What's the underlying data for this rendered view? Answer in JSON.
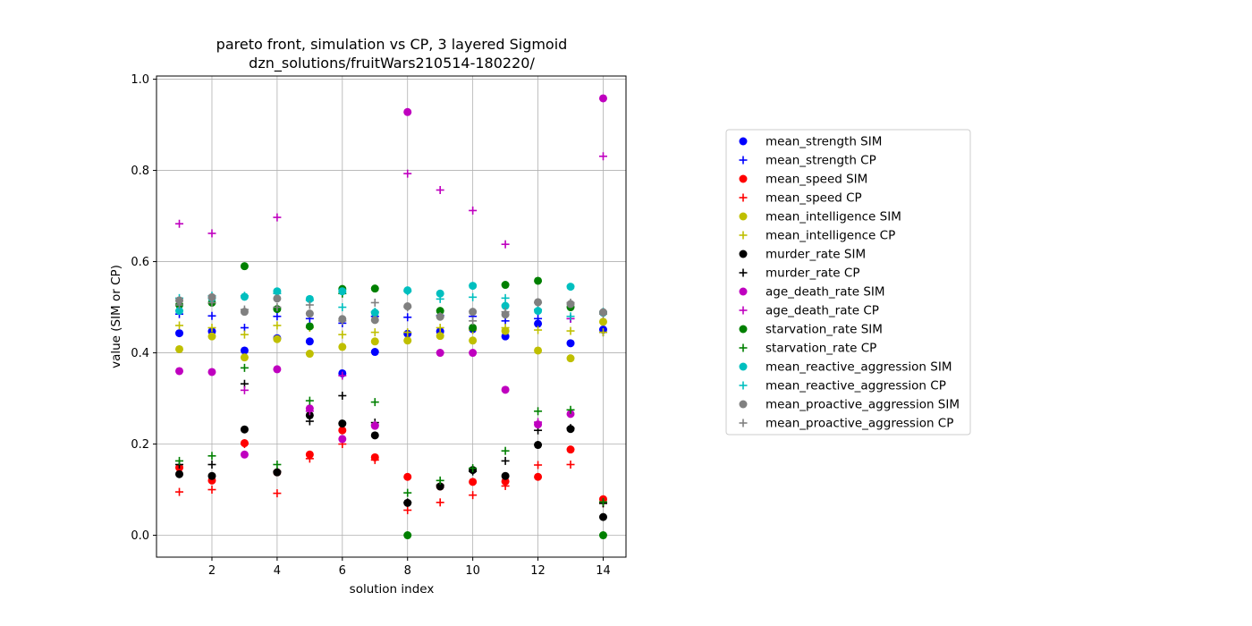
{
  "chart_data": {
    "type": "scatter",
    "title": "pareto front, simulation vs CP, 3 layered Sigmoid",
    "subtitle": "dzn_solutions/fruitWars210514-180220/",
    "xlabel": "solution index",
    "ylabel": "value (SIM or CP)",
    "xlim": [
      0.3,
      14.7
    ],
    "ylim": [
      -0.048,
      1.007
    ],
    "xticks": [
      2,
      4,
      6,
      8,
      10,
      12,
      14
    ],
    "yticks": [
      0.0,
      0.2,
      0.4,
      0.6,
      0.8,
      1.0
    ],
    "grid": true,
    "legend_position": "right",
    "x": [
      1,
      2,
      3,
      4,
      5,
      6,
      7,
      8,
      9,
      10,
      11,
      12,
      13,
      14
    ],
    "series": [
      {
        "name": "mean_strength SIM",
        "color": "#0000ff",
        "marker": "circle",
        "values": [
          0.443,
          0.447,
          0.405,
          0.432,
          0.425,
          0.355,
          0.402,
          0.442,
          0.447,
          0.452,
          0.436,
          0.464,
          0.421,
          0.451
        ]
      },
      {
        "name": "mean_strength CP",
        "color": "#0000ff",
        "marker": "plus",
        "values": [
          0.485,
          0.481,
          0.455,
          0.48,
          0.475,
          0.465,
          0.48,
          0.478,
          0.482,
          0.48,
          0.47,
          0.475,
          0.475,
          0.445
        ]
      },
      {
        "name": "mean_speed SIM",
        "color": "#ff0000",
        "marker": "circle",
        "values": [
          0.148,
          0.12,
          0.202,
          0.138,
          0.177,
          0.23,
          0.171,
          0.128,
          0.107,
          0.117,
          0.118,
          0.128,
          0.188,
          0.079
        ]
      },
      {
        "name": "mean_speed CP",
        "color": "#ff0000",
        "marker": "plus",
        "values": [
          0.095,
          0.1,
          0.2,
          0.092,
          0.168,
          0.2,
          0.165,
          0.055,
          0.072,
          0.088,
          0.108,
          0.154,
          0.155,
          0.07
        ]
      },
      {
        "name": "mean_intelligence SIM",
        "color": "#bfbf00",
        "marker": "circle",
        "values": [
          0.408,
          0.436,
          0.39,
          0.43,
          0.398,
          0.413,
          0.425,
          0.427,
          0.437,
          0.427,
          0.448,
          0.405,
          0.388,
          0.468
        ]
      },
      {
        "name": "mean_intelligence CP",
        "color": "#bfbf00",
        "marker": "plus",
        "values": [
          0.46,
          0.455,
          0.44,
          0.46,
          0.455,
          0.44,
          0.445,
          0.445,
          0.455,
          0.45,
          0.455,
          0.45,
          0.448,
          0.445
        ]
      },
      {
        "name": "murder_rate SIM",
        "color": "#000000",
        "marker": "circle",
        "values": [
          0.134,
          0.13,
          0.232,
          0.138,
          0.263,
          0.245,
          0.219,
          0.071,
          0.107,
          0.143,
          0.13,
          0.198,
          0.233,
          0.04
        ]
      },
      {
        "name": "murder_rate CP",
        "color": "#000000",
        "marker": "plus",
        "values": [
          0.155,
          0.155,
          0.332,
          0.14,
          0.25,
          0.306,
          0.247,
          0.072,
          0.11,
          0.14,
          0.163,
          0.23,
          0.235,
          0.07
        ]
      },
      {
        "name": "age_death_rate SIM",
        "color": "#bf00bf",
        "marker": "circle",
        "values": [
          0.36,
          0.358,
          0.177,
          0.364,
          0.278,
          0.211,
          0.24,
          0.928,
          0.4,
          0.4,
          0.319,
          0.243,
          0.266,
          0.958
        ]
      },
      {
        "name": "age_death_rate CP",
        "color": "#bf00bf",
        "marker": "plus",
        "values": [
          0.683,
          0.662,
          0.318,
          0.697,
          0.272,
          0.35,
          0.242,
          0.793,
          0.757,
          0.712,
          0.638,
          0.248,
          0.475,
          0.831
        ]
      },
      {
        "name": "starvation_rate SIM",
        "color": "#008000",
        "marker": "circle",
        "values": [
          0.505,
          0.51,
          0.59,
          0.496,
          0.458,
          0.54,
          0.541,
          0.0,
          0.492,
          0.455,
          0.549,
          0.558,
          0.5,
          0.0
        ]
      },
      {
        "name": "starvation_rate CP",
        "color": "#008000",
        "marker": "plus",
        "values": [
          0.163,
          0.174,
          0.367,
          0.155,
          0.295,
          0.53,
          0.292,
          0.093,
          0.12,
          0.147,
          0.185,
          0.272,
          0.275,
          0.073
        ]
      },
      {
        "name": "mean_reactive_aggression SIM",
        "color": "#00bfbf",
        "marker": "circle",
        "values": [
          0.492,
          0.52,
          0.523,
          0.535,
          0.518,
          0.535,
          0.488,
          0.537,
          0.53,
          0.547,
          0.503,
          0.492,
          0.545,
          0.488
        ]
      },
      {
        "name": "mean_reactive_aggression CP",
        "color": "#00bfbf",
        "marker": "plus",
        "values": [
          0.52,
          0.525,
          0.525,
          0.53,
          0.515,
          0.5,
          0.49,
          0.535,
          0.518,
          0.522,
          0.52,
          0.495,
          0.48,
          0.49
        ]
      },
      {
        "name": "mean_proactive_aggression SIM",
        "color": "#808080",
        "marker": "circle",
        "values": [
          0.515,
          0.522,
          0.49,
          0.519,
          0.486,
          0.474,
          0.472,
          0.502,
          0.479,
          0.49,
          0.484,
          0.511,
          0.507,
          0.489
        ]
      },
      {
        "name": "mean_proactive_aggression CP",
        "color": "#808080",
        "marker": "plus",
        "values": [
          0.505,
          0.51,
          0.495,
          0.5,
          0.505,
          0.47,
          0.51,
          0.5,
          0.48,
          0.47,
          0.49,
          0.51,
          0.51,
          0.485
        ]
      }
    ]
  }
}
